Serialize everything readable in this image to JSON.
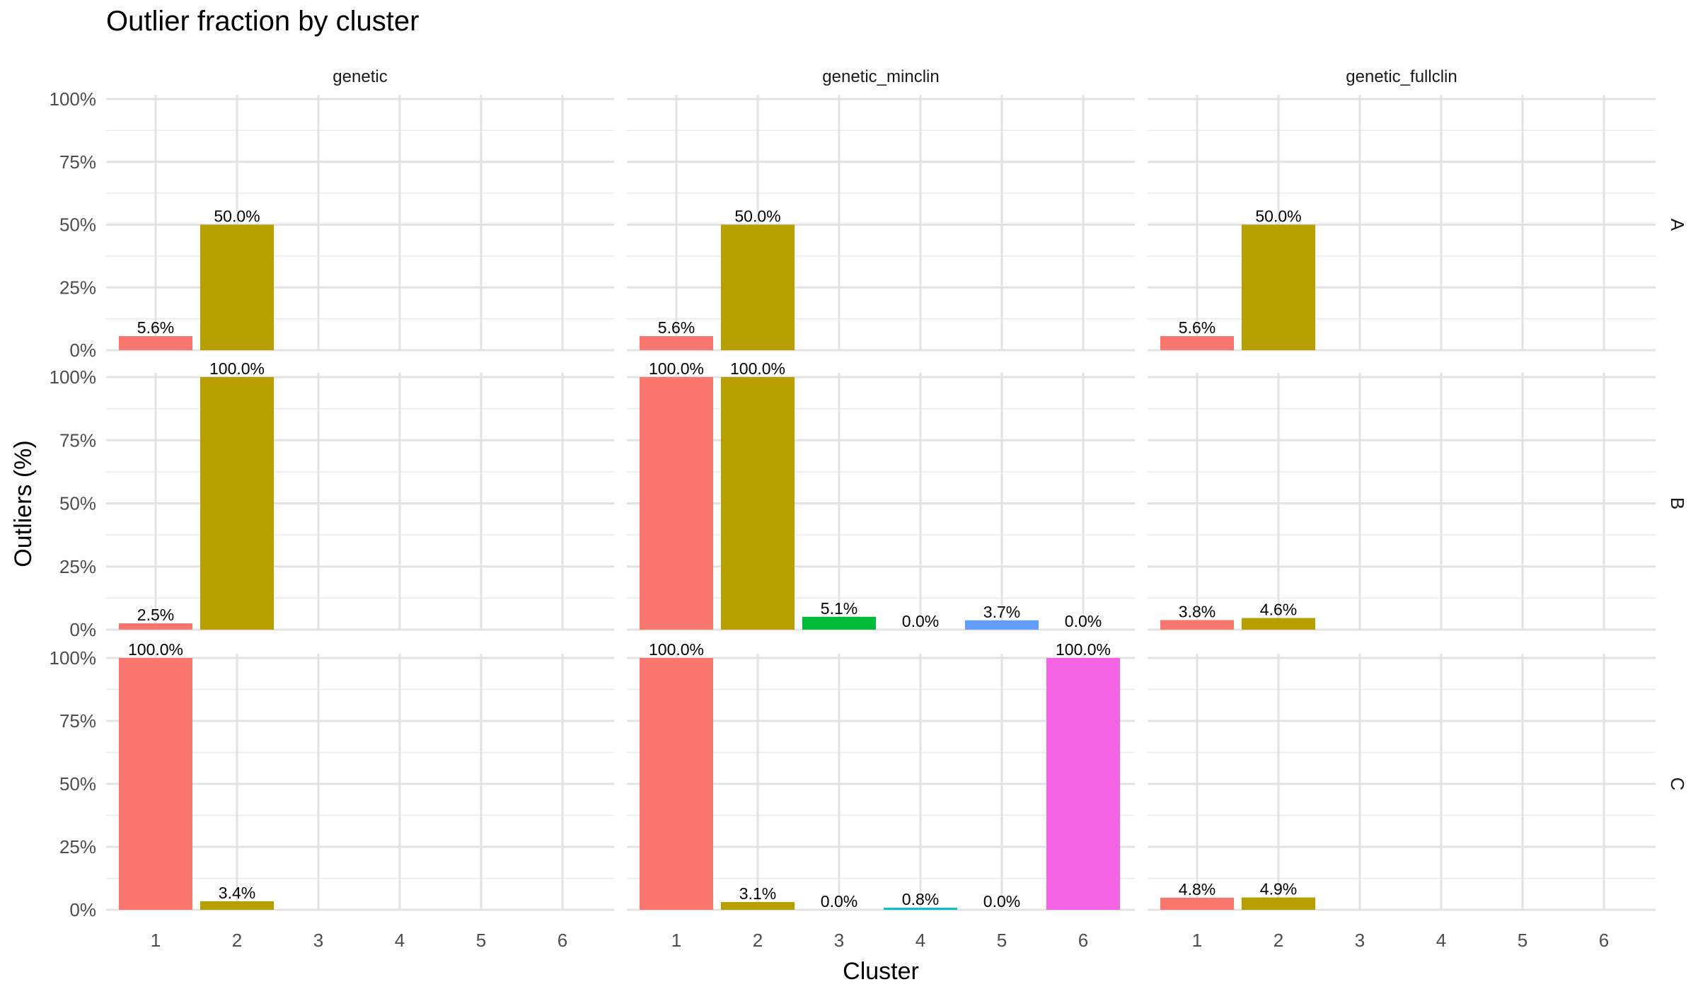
{
  "chart_data": {
    "type": "bar",
    "title": "Outlier fraction by cluster",
    "xlabel": "Cluster",
    "ylabel": "Outliers (%)",
    "ylim": [
      0,
      100
    ],
    "y_ticks": [
      0,
      25,
      50,
      75,
      100
    ],
    "y_tick_labels": [
      "0%",
      "25%",
      "50%",
      "75%",
      "100%"
    ],
    "categories": [
      "1",
      "2",
      "3",
      "4",
      "5",
      "6"
    ],
    "col_facets": [
      "genetic",
      "genetic_minclin",
      "genetic_fullclin"
    ],
    "row_facets": [
      "A",
      "B",
      "C"
    ],
    "cluster_colors": {
      "1": "#F8766D",
      "2": "#B79F00",
      "3": "#00BA38",
      "4": "#00BFC4",
      "5": "#619CFF",
      "6": "#F564E3"
    },
    "panels": [
      {
        "row": "A",
        "col": "genetic",
        "bars": [
          {
            "cluster": "1",
            "value": 5.6,
            "label": "5.6%"
          },
          {
            "cluster": "2",
            "value": 50.0,
            "label": "50.0%"
          }
        ]
      },
      {
        "row": "A",
        "col": "genetic_minclin",
        "bars": [
          {
            "cluster": "1",
            "value": 5.6,
            "label": "5.6%"
          },
          {
            "cluster": "2",
            "value": 50.0,
            "label": "50.0%"
          }
        ]
      },
      {
        "row": "A",
        "col": "genetic_fullclin",
        "bars": [
          {
            "cluster": "1",
            "value": 5.6,
            "label": "5.6%"
          },
          {
            "cluster": "2",
            "value": 50.0,
            "label": "50.0%"
          }
        ]
      },
      {
        "row": "B",
        "col": "genetic",
        "bars": [
          {
            "cluster": "1",
            "value": 2.5,
            "label": "2.5%"
          },
          {
            "cluster": "2",
            "value": 100.0,
            "label": "100.0%"
          }
        ]
      },
      {
        "row": "B",
        "col": "genetic_minclin",
        "bars": [
          {
            "cluster": "1",
            "value": 100.0,
            "label": "100.0%"
          },
          {
            "cluster": "2",
            "value": 100.0,
            "label": "100.0%"
          },
          {
            "cluster": "3",
            "value": 5.1,
            "label": "5.1%"
          },
          {
            "cluster": "4",
            "value": 0.0,
            "label": "0.0%"
          },
          {
            "cluster": "5",
            "value": 3.7,
            "label": "3.7%"
          },
          {
            "cluster": "6",
            "value": 0.0,
            "label": "0.0%"
          }
        ]
      },
      {
        "row": "B",
        "col": "genetic_fullclin",
        "bars": [
          {
            "cluster": "1",
            "value": 3.8,
            "label": "3.8%"
          },
          {
            "cluster": "2",
            "value": 4.6,
            "label": "4.6%"
          }
        ]
      },
      {
        "row": "C",
        "col": "genetic",
        "bars": [
          {
            "cluster": "1",
            "value": 100.0,
            "label": "100.0%"
          },
          {
            "cluster": "2",
            "value": 3.4,
            "label": "3.4%"
          }
        ]
      },
      {
        "row": "C",
        "col": "genetic_minclin",
        "bars": [
          {
            "cluster": "1",
            "value": 100.0,
            "label": "100.0%"
          },
          {
            "cluster": "2",
            "value": 3.1,
            "label": "3.1%"
          },
          {
            "cluster": "3",
            "value": 0.0,
            "label": "0.0%"
          },
          {
            "cluster": "4",
            "value": 0.8,
            "label": "0.8%"
          },
          {
            "cluster": "5",
            "value": 0.0,
            "label": "0.0%"
          },
          {
            "cluster": "6",
            "value": 100.0,
            "label": "100.0%"
          }
        ]
      },
      {
        "row": "C",
        "col": "genetic_fullclin",
        "bars": [
          {
            "cluster": "1",
            "value": 4.8,
            "label": "4.8%"
          },
          {
            "cluster": "2",
            "value": 4.9,
            "label": "4.9%"
          }
        ]
      }
    ],
    "grid": true,
    "legend": "none"
  }
}
